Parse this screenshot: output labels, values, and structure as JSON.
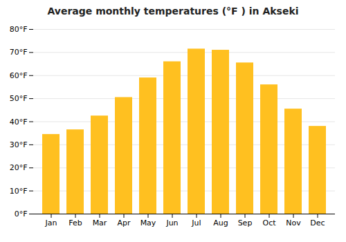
{
  "chart_data": {
    "type": "bar",
    "title": "Average monthly temperatures (°F ) in Akseki",
    "categories": [
      "Jan",
      "Feb",
      "Mar",
      "Apr",
      "May",
      "Jun",
      "Jul",
      "Aug",
      "Sep",
      "Oct",
      "Nov",
      "Dec"
    ],
    "values": [
      34.5,
      36.5,
      42.5,
      50.5,
      59.0,
      66.0,
      71.5,
      71.0,
      65.5,
      56.0,
      45.5,
      38.0
    ],
    "color": "#FFC020",
    "ylim": [
      0,
      80
    ],
    "yticks": [
      {
        "value": 0,
        "label": "0°F"
      },
      {
        "value": 10,
        "label": "10°F"
      },
      {
        "value": 20,
        "label": "20°F"
      },
      {
        "value": 30,
        "label": "30°F"
      },
      {
        "value": 40,
        "label": "40°F"
      },
      {
        "value": 50,
        "label": "50°F"
      },
      {
        "value": 60,
        "label": "60°F"
      },
      {
        "value": 70,
        "label": "70°F"
      },
      {
        "value": 80,
        "label": "80°F"
      }
    ],
    "grid": true
  }
}
